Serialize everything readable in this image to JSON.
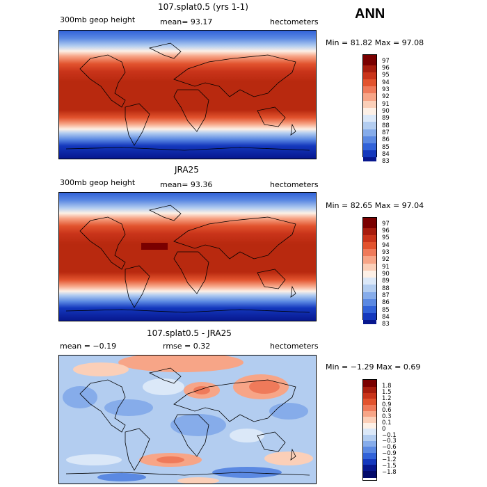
{
  "season": "ANN",
  "panels": [
    {
      "title": "107.splat0.5 (yrs 1-1)",
      "left_label": "300mb geop height",
      "center_label": "mean=  93.17",
      "right_label": "hectometers",
      "minmax": "Min =  81.82 Max =  97.08"
    },
    {
      "title": "JRA25",
      "left_label": "300mb geop height",
      "center_label": "mean=  93.36",
      "right_label": "hectometers",
      "minmax": "Min =  82.65 Max =  97.04"
    },
    {
      "title": "107.splat0.5 - JRA25",
      "left_label": "mean =  −0.19",
      "center_label": "rmse =   0.32",
      "right_label": "hectometers",
      "minmax": "Min = −1.29 Max =   0.69"
    }
  ],
  "legend_abs": {
    "labels": [
      "97",
      "96",
      "95",
      "94",
      "93",
      "92",
      "91",
      "90",
      "89",
      "88",
      "87",
      "86",
      "85",
      "84",
      "83"
    ],
    "colors": [
      "#7a0000",
      "#a71c0d",
      "#c9341a",
      "#e2532e",
      "#ef7a5a",
      "#f7a587",
      "#fbcfb8",
      "#fdf0e6",
      "#dbe8f8",
      "#b3cdf0",
      "#86acea",
      "#5b89e2",
      "#3162d8",
      "#1438bd",
      "#07178e"
    ]
  },
  "legend_diff": {
    "labels": [
      "1.8",
      "1.5",
      "1.2",
      "0.9",
      "0.6",
      "0.3",
      "0.1",
      "0",
      "−0.1",
      "−0.3",
      "−0.6",
      "−0.9",
      "−1.2",
      "−1.5",
      "−1.8"
    ],
    "colors": [
      "#7a0000",
      "#a71c0d",
      "#c9341a",
      "#e2532e",
      "#ef7a5a",
      "#f7a587",
      "#fbcfb8",
      "#fdf0e6",
      "#dbe8f8",
      "#b3cdf0",
      "#86acea",
      "#5b89e2",
      "#3162d8",
      "#1438bd",
      "#07178e",
      "#030a6a"
    ]
  }
}
